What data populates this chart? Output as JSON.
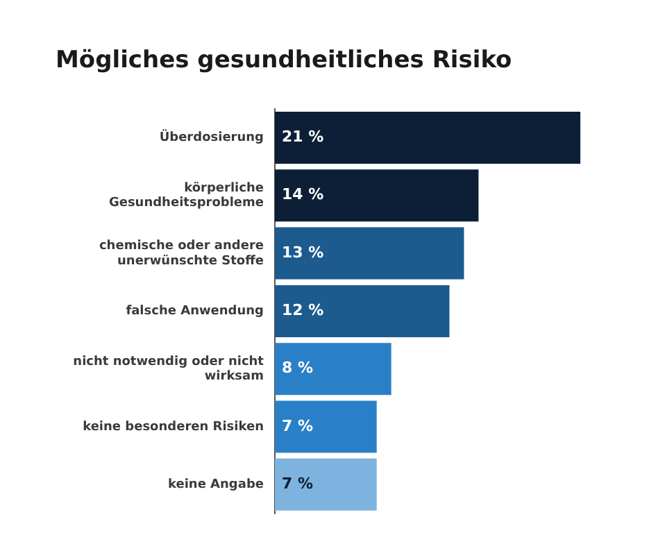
{
  "chart_data": {
    "type": "bar",
    "orientation": "horizontal",
    "title": "Mögliches gesundheitliches Risiko",
    "categories": [
      "Überdosierung",
      "körperliche Gesundheitsprobleme",
      "chemische oder andere unerwünschte Stoffe",
      "falsche Anwendung",
      "nicht notwendig oder nicht wirksam",
      "keine besonderen Risiken",
      "keine Angabe"
    ],
    "values": [
      21,
      14,
      13,
      12,
      8,
      7,
      7
    ],
    "value_labels": [
      "21 %",
      "14 %",
      "13 %",
      "12 %",
      "8 %",
      "7 %",
      "7 %"
    ],
    "colors": [
      "#0c1f36",
      "#0c1f36",
      "#1d5b8f",
      "#1d5b8f",
      "#2a80c6",
      "#2a80c6",
      "#7fb3df"
    ],
    "legend": false
  }
}
